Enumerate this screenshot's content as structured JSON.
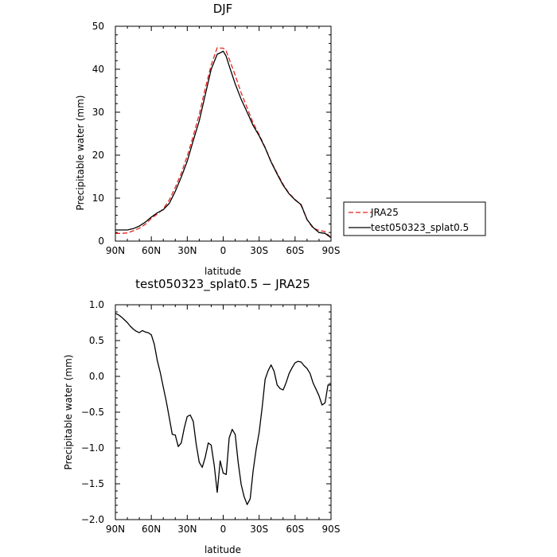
{
  "chart_data": [
    {
      "type": "line",
      "title": "DJF",
      "xlabel": "latitude",
      "ylabel": "Precipitable water (mm)",
      "xlim": [
        90,
        -90
      ],
      "ylim": [
        0,
        50
      ],
      "yticks": [
        0,
        10,
        20,
        30,
        40,
        50
      ],
      "xticks": [
        90,
        60,
        30,
        0,
        -30,
        -60,
        -90
      ],
      "xticklabels": [
        "90N",
        "60N",
        "30N",
        "0",
        "30S",
        "60S",
        "90S"
      ],
      "legend": {
        "placement": "outside-right"
      },
      "series": [
        {
          "name": "JRA25",
          "color": "#e8231f",
          "dash": "dashed",
          "x": [
            90,
            85,
            80,
            75,
            70,
            65,
            60,
            55,
            50,
            45,
            40,
            35,
            30,
            25,
            20,
            15,
            10,
            5,
            2.5,
            0,
            -2.5,
            -5,
            -10,
            -15,
            -20,
            -25,
            -30,
            -35,
            -40,
            -45,
            -50,
            -55,
            -60,
            -65,
            -70,
            -75,
            -80,
            -85,
            -90
          ],
          "y": [
            1.8,
            1.8,
            1.9,
            2.4,
            3.0,
            3.9,
            5.3,
            6.3,
            7.5,
            9.6,
            12.5,
            15.8,
            19.8,
            24.5,
            29.5,
            35.5,
            41.0,
            45.0,
            44.9,
            44.9,
            44.2,
            42.4,
            38.6,
            34.5,
            31.0,
            27.5,
            24.8,
            21.8,
            18.5,
            15.8,
            13.2,
            11.1,
            9.7,
            8.3,
            5.0,
            3.0,
            2.5,
            2.2,
            0.8
          ]
        },
        {
          "name": "test050323_splat0.5",
          "color": "#000000",
          "dash": "solid",
          "x": [
            90,
            85,
            80,
            75,
            70,
            65,
            60,
            55,
            50,
            45,
            40,
            35,
            30,
            25,
            20,
            15,
            10,
            5,
            2.5,
            0,
            -2.5,
            -5,
            -10,
            -15,
            -20,
            -25,
            -30,
            -35,
            -40,
            -45,
            -50,
            -55,
            -60,
            -65,
            -70,
            -75,
            -80,
            -85,
            -90
          ],
          "y": [
            2.6,
            2.6,
            2.6,
            2.9,
            3.5,
            4.4,
            5.6,
            6.6,
            7.3,
            8.8,
            11.6,
            14.9,
            18.6,
            23.4,
            28.0,
            34.0,
            40.0,
            43.5,
            43.8,
            44.2,
            43.0,
            40.8,
            36.6,
            33.0,
            30.0,
            26.9,
            24.5,
            21.7,
            18.4,
            15.6,
            13.0,
            11.0,
            9.6,
            8.5,
            5.0,
            3.2,
            2.0,
            1.8,
            0.8
          ]
        }
      ]
    },
    {
      "type": "line",
      "title": "test050323_splat0.5 − JRA25",
      "xlabel": "latitude",
      "ylabel": "Precipitable water (mm)",
      "xlim": [
        90,
        -90
      ],
      "ylim": [
        -2.0,
        1.0
      ],
      "yticks": [
        1.0,
        0.5,
        0.0,
        -0.5,
        -1.0,
        -1.5,
        -2.0
      ],
      "yticklabels": [
        "1.0",
        "0.5",
        "0.0",
        "−0.5",
        "−1.0",
        "−1.5",
        "−2.0"
      ],
      "xticks": [
        90,
        60,
        30,
        0,
        -30,
        -60,
        -90
      ],
      "xticklabels": [
        "90N",
        "60N",
        "30N",
        "0",
        "30S",
        "60S",
        "90S"
      ],
      "series": [
        {
          "color": "#000000",
          "dash": "solid",
          "x": [
            90,
            87.5,
            85,
            82.5,
            80,
            77.5,
            75,
            72.5,
            70,
            67.5,
            65,
            62.5,
            60,
            57.5,
            55,
            52.5,
            50,
            47.5,
            45,
            42.5,
            40,
            37.5,
            35,
            32.5,
            30,
            27.5,
            25,
            22.5,
            20,
            17.5,
            15,
            12.5,
            10,
            7.5,
            5,
            2.5,
            0,
            -2.5,
            -5,
            -7.5,
            -10,
            -12.5,
            -15,
            -17.5,
            -20,
            -22.5,
            -25,
            -27.5,
            -30,
            -32.5,
            -35,
            -37.5,
            -40,
            -42.5,
            -45,
            -47.5,
            -50,
            -52.5,
            -55,
            -57.5,
            -60,
            -62.5,
            -65,
            -67.5,
            -70,
            -72.5,
            -75,
            -77.5,
            -80,
            -82.5,
            -85,
            -87.5,
            -90
          ],
          "y": [
            0.88,
            0.86,
            0.83,
            0.79,
            0.75,
            0.7,
            0.66,
            0.63,
            0.61,
            0.64,
            0.62,
            0.61,
            0.58,
            0.45,
            0.22,
            0.05,
            -0.15,
            -0.35,
            -0.58,
            -0.81,
            -0.82,
            -0.98,
            -0.93,
            -0.72,
            -0.56,
            -0.54,
            -0.63,
            -0.95,
            -1.2,
            -1.27,
            -1.13,
            -0.93,
            -0.96,
            -1.24,
            -1.62,
            -1.18,
            -1.35,
            -1.37,
            -0.86,
            -0.74,
            -0.81,
            -1.2,
            -1.51,
            -1.68,
            -1.79,
            -1.71,
            -1.32,
            -1.02,
            -0.78,
            -0.44,
            -0.04,
            0.08,
            0.16,
            0.07,
            -0.12,
            -0.17,
            -0.19,
            -0.09,
            0.04,
            0.12,
            0.19,
            0.21,
            0.2,
            0.15,
            0.11,
            0.04,
            -0.09,
            -0.18,
            -0.27,
            -0.4,
            -0.37,
            -0.12,
            -0.12
          ]
        }
      ]
    }
  ]
}
